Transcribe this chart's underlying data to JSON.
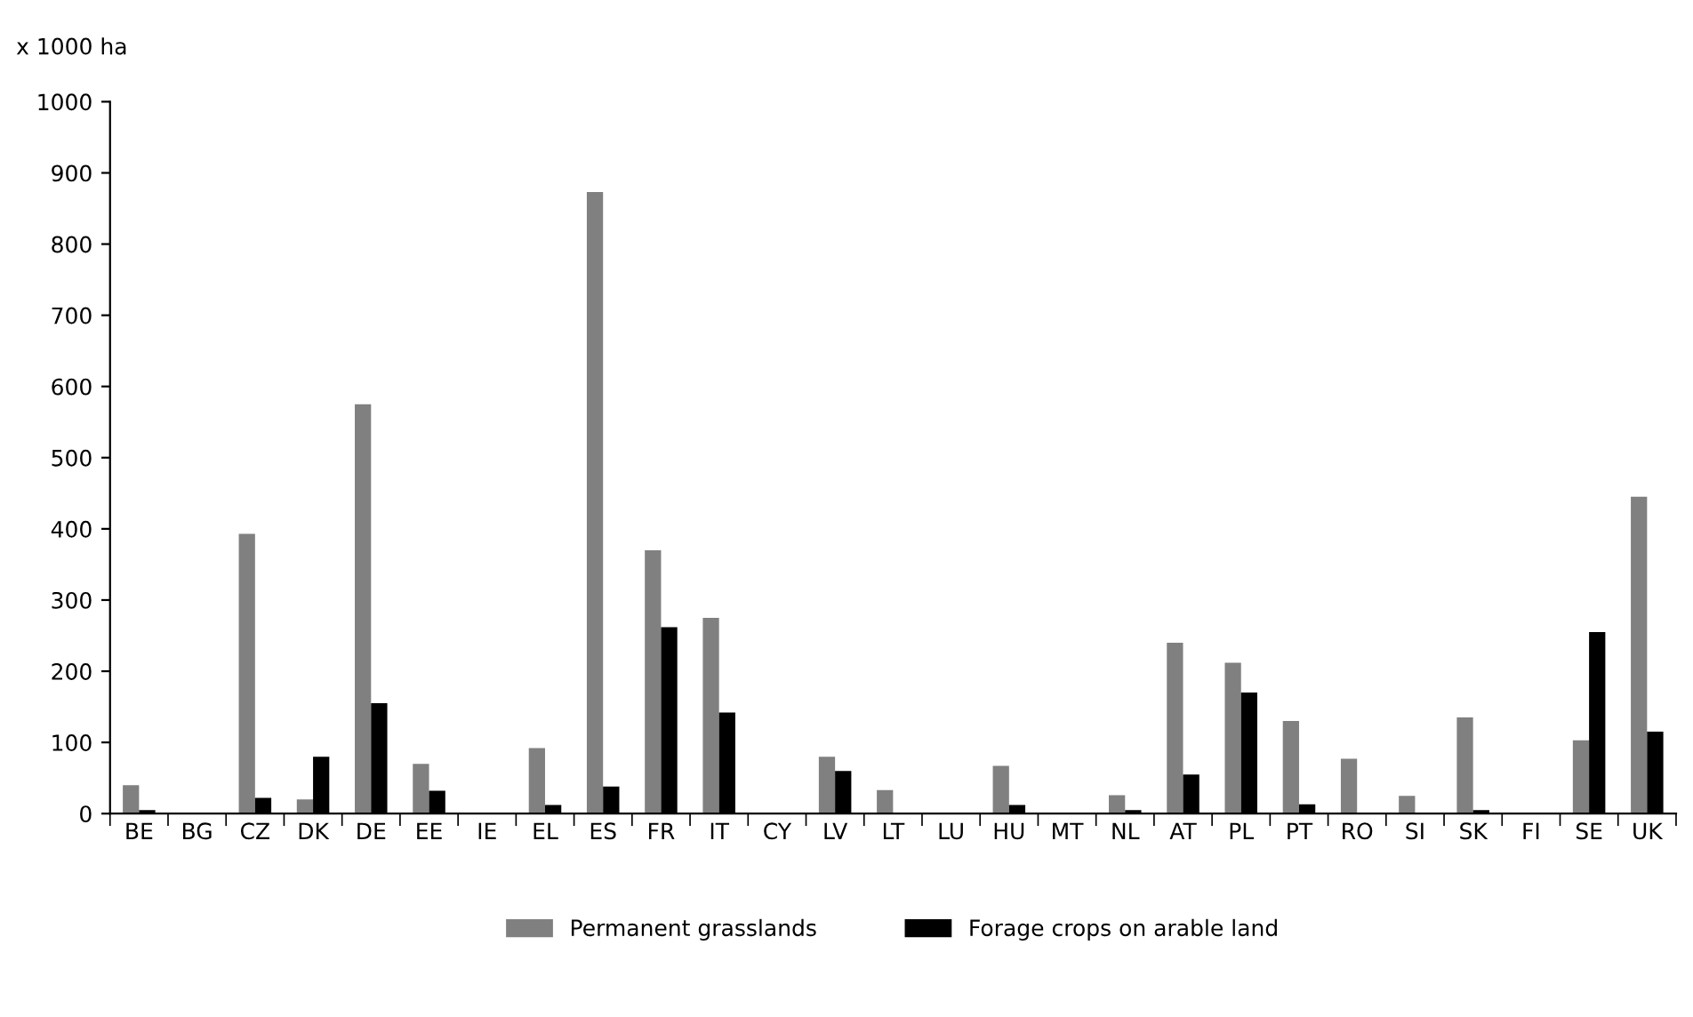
{
  "chart_data": {
    "type": "bar",
    "ylabel": "x 1000 ha",
    "categories": [
      "BE",
      "BG",
      "CZ",
      "DK",
      "DE",
      "EE",
      "IE",
      "EL",
      "ES",
      "FR",
      "IT",
      "CY",
      "LV",
      "LT",
      "LU",
      "HU",
      "MT",
      "NL",
      "AT",
      "PL",
      "PT",
      "RO",
      "SI",
      "SK",
      "FI",
      "SE",
      "UK"
    ],
    "series": [
      {
        "name": "Permanent grasslands",
        "color": "#808080",
        "values": [
          40,
          null,
          393,
          20,
          575,
          70,
          0,
          92,
          873,
          370,
          275,
          1,
          80,
          33,
          1,
          67,
          1,
          26,
          240,
          212,
          130,
          77,
          25,
          135,
          1,
          103,
          445
        ]
      },
      {
        "name": "Forage crops on arable land",
        "color": "#000000",
        "values": [
          5,
          1,
          22,
          80,
          155,
          32,
          0,
          12,
          38,
          262,
          142,
          1,
          60,
          0,
          0,
          12,
          1,
          5,
          55,
          170,
          13,
          null,
          1,
          5,
          0,
          255,
          115
        ]
      }
    ],
    "ylim": [
      0,
      1000
    ],
    "yticks": [
      0,
      100,
      200,
      300,
      400,
      500,
      600,
      700,
      800,
      900,
      1000
    ],
    "grid": false,
    "legend": "bottom"
  }
}
